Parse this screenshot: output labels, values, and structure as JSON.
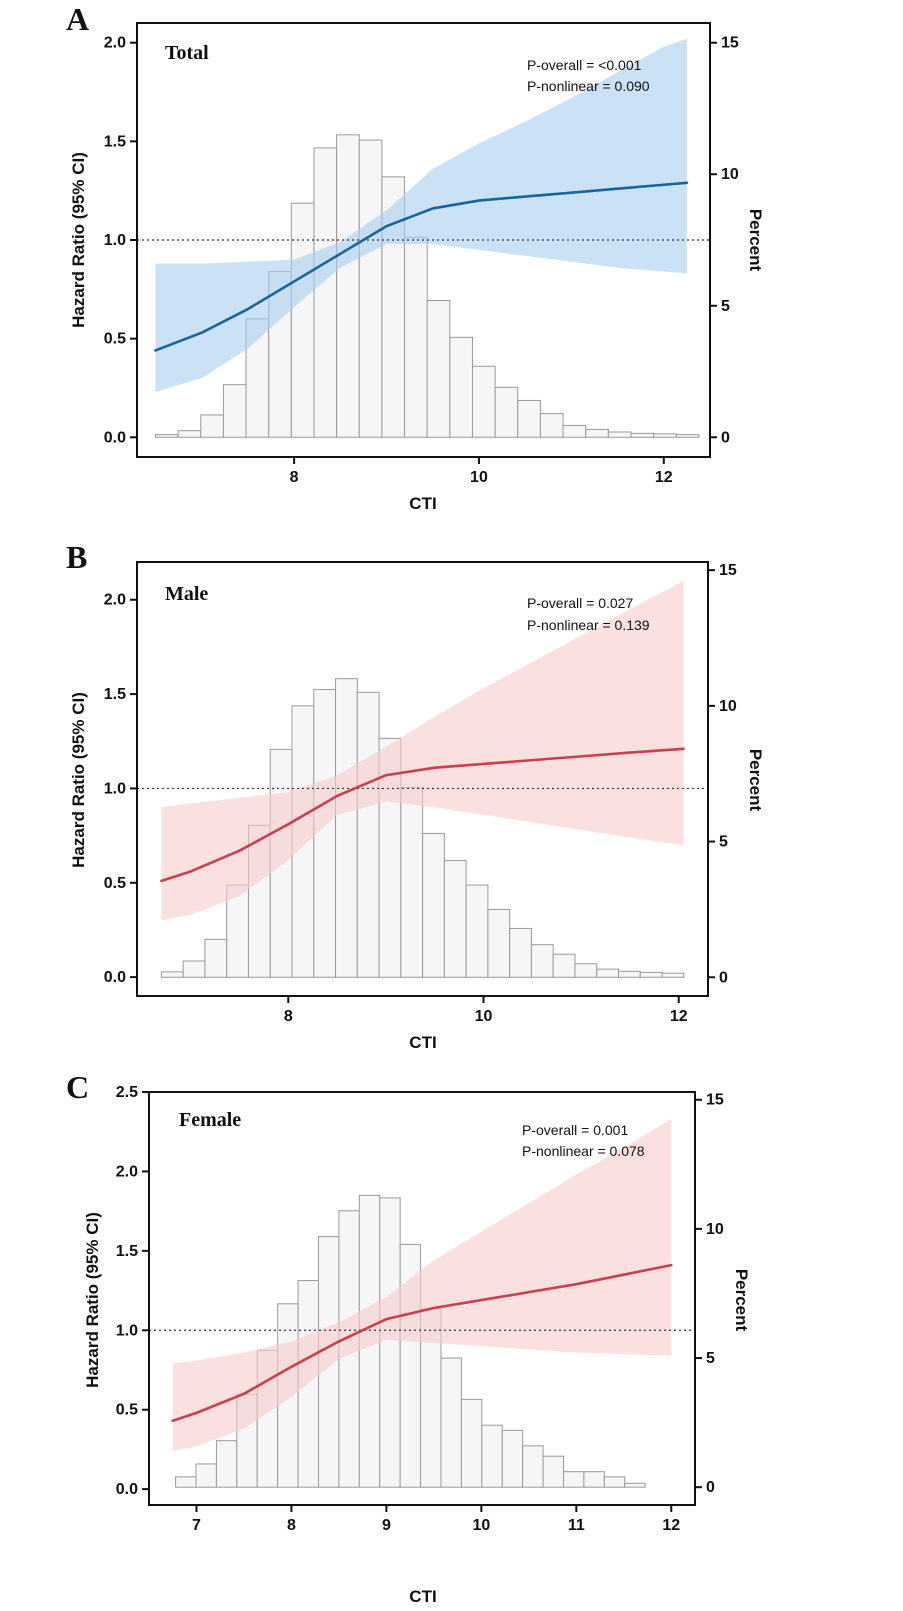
{
  "chart_data": [
    {
      "panel": "A",
      "type": "line",
      "title": "Total",
      "xlabel": "CTI",
      "ylabel": "Hazard Ratio (95% CI)",
      "y2label": "Percent",
      "xlim": [
        6.3,
        12.5
      ],
      "ylim": [
        -0.1,
        2.1
      ],
      "y2lim": [
        -0.75,
        15.75
      ],
      "xticks": [
        8,
        10,
        12
      ],
      "yticks": [
        0.0,
        0.5,
        1.0,
        1.5,
        2.0
      ],
      "y2ticks": [
        0,
        5,
        10,
        15
      ],
      "reference_hr": 1.0,
      "annotations": [
        "P-overall = <0.001",
        "P-nonlinear = 0.090"
      ],
      "color": "#1565a0",
      "band_color": "#a9cdee",
      "series": [
        {
          "name": "hazard_ratio",
          "x": [
            6.5,
            7.0,
            7.5,
            8.0,
            8.5,
            9.0,
            9.5,
            10.0,
            10.5,
            11.0,
            11.5,
            12.0,
            12.25
          ],
          "values": [
            0.44,
            0.53,
            0.65,
            0.79,
            0.93,
            1.07,
            1.16,
            1.2,
            1.22,
            1.24,
            1.26,
            1.28,
            1.29
          ],
          "lower": [
            0.23,
            0.3,
            0.45,
            0.66,
            0.86,
            0.98,
            0.98,
            0.95,
            0.92,
            0.89,
            0.86,
            0.84,
            0.83
          ],
          "upper": [
            0.88,
            0.88,
            0.89,
            0.9,
            0.99,
            1.15,
            1.36,
            1.49,
            1.6,
            1.72,
            1.85,
            1.98,
            2.02
          ]
        }
      ],
      "histogram": {
        "bin_start": 6.5,
        "bin_width": 0.245,
        "percent": [
          0.1,
          0.25,
          0.85,
          2.0,
          4.5,
          6.3,
          8.9,
          11.0,
          11.5,
          11.3,
          9.9,
          7.6,
          5.2,
          3.8,
          2.7,
          1.9,
          1.4,
          0.9,
          0.45,
          0.3,
          0.2,
          0.15,
          0.13,
          0.1
        ]
      }
    },
    {
      "panel": "B",
      "type": "line",
      "title": "Male",
      "xlabel": "CTI",
      "ylabel": "Hazard Ratio (95% CI)",
      "y2label": "Percent",
      "xlim": [
        6.45,
        12.3
      ],
      "ylim": [
        -0.1,
        2.2
      ],
      "y2lim": [
        -0.69,
        15.3
      ],
      "xticks": [
        8,
        10,
        12
      ],
      "yticks": [
        0.0,
        0.5,
        1.0,
        1.5,
        2.0
      ],
      "y2ticks": [
        0,
        5,
        10,
        15
      ],
      "reference_hr": 1.0,
      "annotations": [
        "P-overall = 0.027",
        "P-nonlinear = 0.139"
      ],
      "color": "#c8404f",
      "band_color": "#f9cccc",
      "series": [
        {
          "name": "hazard_ratio",
          "x": [
            6.7,
            7.0,
            7.5,
            8.0,
            8.5,
            9.0,
            9.5,
            10.0,
            10.5,
            11.0,
            11.5,
            12.05
          ],
          "values": [
            0.51,
            0.56,
            0.67,
            0.81,
            0.96,
            1.07,
            1.11,
            1.13,
            1.15,
            1.17,
            1.19,
            1.21
          ],
          "lower": [
            0.3,
            0.33,
            0.43,
            0.62,
            0.86,
            0.93,
            0.9,
            0.86,
            0.82,
            0.78,
            0.74,
            0.7
          ],
          "upper": [
            0.9,
            0.92,
            0.95,
            0.98,
            1.07,
            1.22,
            1.38,
            1.53,
            1.67,
            1.81,
            1.95,
            2.1
          ]
        }
      ],
      "histogram": {
        "bin_start": 6.7,
        "bin_width": 0.223,
        "percent": [
          0.2,
          0.6,
          1.4,
          3.4,
          5.6,
          8.4,
          10.0,
          10.6,
          11.0,
          10.5,
          8.8,
          7.0,
          5.3,
          4.3,
          3.4,
          2.5,
          1.8,
          1.2,
          0.85,
          0.5,
          0.3,
          0.22,
          0.18,
          0.15
        ]
      }
    },
    {
      "panel": "C",
      "type": "line",
      "title": "Female",
      "xlabel": "CTI",
      "ylabel": "Hazard Ratio (95% CI)",
      "y2label": "Percent",
      "xlim": [
        6.5,
        12.25
      ],
      "ylim": [
        -0.1,
        2.5
      ],
      "y2lim": [
        -0.69,
        15.3
      ],
      "xticks": [
        7,
        8,
        9,
        10,
        11,
        12
      ],
      "yticks": [
        0.0,
        0.5,
        1.0,
        1.5,
        2.0,
        2.5
      ],
      "y2ticks": [
        0,
        5,
        10,
        15
      ],
      "reference_hr": 1.0,
      "annotations": [
        "P-overall = 0.001",
        "P-nonlinear = 0.078"
      ],
      "color": "#c8404f",
      "band_color": "#f9cccc",
      "series": [
        {
          "name": "hazard_ratio",
          "x": [
            6.75,
            7.0,
            7.5,
            8.0,
            8.5,
            9.0,
            9.5,
            10.0,
            10.5,
            11.0,
            11.5,
            12.0
          ],
          "values": [
            0.43,
            0.48,
            0.6,
            0.77,
            0.93,
            1.07,
            1.14,
            1.19,
            1.24,
            1.29,
            1.35,
            1.41
          ],
          "lower": [
            0.24,
            0.27,
            0.38,
            0.58,
            0.82,
            0.94,
            0.92,
            0.9,
            0.88,
            0.86,
            0.85,
            0.84
          ],
          "upper": [
            0.79,
            0.81,
            0.86,
            0.93,
            1.05,
            1.21,
            1.44,
            1.62,
            1.8,
            1.98,
            2.15,
            2.33
          ]
        }
      ],
      "histogram": {
        "bin_start": 6.78,
        "bin_width": 0.215,
        "percent": [
          0.4,
          0.9,
          1.8,
          3.6,
          5.3,
          7.1,
          8.0,
          9.7,
          10.7,
          11.3,
          11.2,
          9.4,
          6.9,
          5.0,
          3.4,
          2.4,
          2.2,
          1.6,
          1.2,
          0.6,
          0.6,
          0.4,
          0.15
        ]
      }
    }
  ]
}
